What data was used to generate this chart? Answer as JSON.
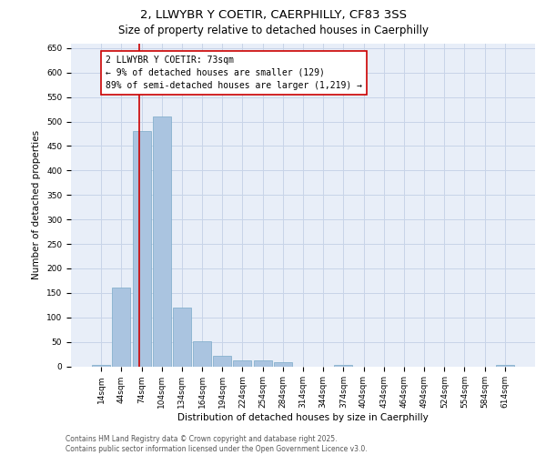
{
  "title_line1": "2, LLWYBR Y COETIR, CAERPHILLY, CF83 3SS",
  "title_line2": "Size of property relative to detached houses in Caerphilly",
  "xlabel": "Distribution of detached houses by size in Caerphilly",
  "ylabel": "Number of detached properties",
  "categories": [
    "14sqm",
    "44sqm",
    "74sqm",
    "104sqm",
    "134sqm",
    "164sqm",
    "194sqm",
    "224sqm",
    "254sqm",
    "284sqm",
    "314sqm",
    "344sqm",
    "374sqm",
    "404sqm",
    "434sqm",
    "464sqm",
    "494sqm",
    "524sqm",
    "554sqm",
    "584sqm",
    "614sqm"
  ],
  "values": [
    3,
    160,
    480,
    510,
    120,
    52,
    22,
    12,
    12,
    8,
    0,
    0,
    3,
    0,
    0,
    0,
    0,
    0,
    0,
    0,
    3
  ],
  "bar_color": "#aac4e0",
  "bar_edge_color": "#7aaac8",
  "grid_color": "#c8d4e8",
  "background_color": "#e8eef8",
  "annotation_text": "2 LLWYBR Y COETIR: 73sqm\n← 9% of detached houses are smaller (129)\n89% of semi-detached houses are larger (1,219) →",
  "annotation_box_color": "#ffffff",
  "annotation_border_color": "#cc0000",
  "vline_color": "#cc0000",
  "ylim": [
    0,
    660
  ],
  "yticks": [
    0,
    50,
    100,
    150,
    200,
    250,
    300,
    350,
    400,
    450,
    500,
    550,
    600,
    650
  ],
  "footer_line1": "Contains HM Land Registry data © Crown copyright and database right 2025.",
  "footer_line2": "Contains public sector information licensed under the Open Government Licence v3.0.",
  "title_fontsize": 9.5,
  "subtitle_fontsize": 8.5,
  "axis_label_fontsize": 7.5,
  "tick_fontsize": 6.5,
  "annotation_fontsize": 7,
  "footer_fontsize": 5.5
}
